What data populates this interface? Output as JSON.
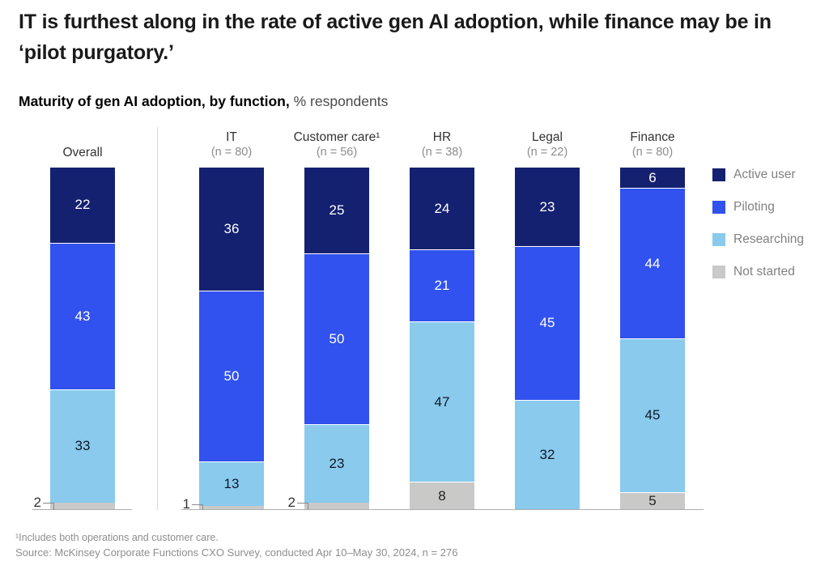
{
  "title": "IT is furthest along in the rate of active gen AI adoption, while finance may be in ‘pilot purgatory.’",
  "subtitle": {
    "bold": "Maturity of gen AI adoption, by function,",
    "regular": " % respondents"
  },
  "chart_data": {
    "type": "bar",
    "stacked": true,
    "unit": "% respondents",
    "ylim": [
      0,
      100
    ],
    "legend_position": "right",
    "categories": [
      {
        "label": "Overall",
        "n": ""
      },
      {
        "label": "IT",
        "n": "(n = 80)"
      },
      {
        "label": "Customer care¹",
        "n": "(n = 56)"
      },
      {
        "label": "HR",
        "n": "(n = 38)"
      },
      {
        "label": "Legal",
        "n": "(n = 22)"
      },
      {
        "label": "Finance",
        "n": "(n = 80)"
      }
    ],
    "series": [
      {
        "name": "Active user",
        "color": "#142170",
        "text_color": "#ffffff",
        "values": [
          22,
          36,
          25,
          24,
          23,
          6
        ]
      },
      {
        "name": "Piloting",
        "color": "#3152ee",
        "text_color": "#ffffff",
        "values": [
          43,
          50,
          50,
          21,
          45,
          44
        ]
      },
      {
        "name": "Researching",
        "color": "#89caed",
        "text_color": "#10192b",
        "values": [
          33,
          13,
          23,
          47,
          32,
          45
        ]
      },
      {
        "name": "Not started",
        "color": "#c9c9c8",
        "text_color": "#222222",
        "values": [
          2,
          1,
          2,
          8,
          null,
          5
        ]
      }
    ]
  },
  "legend": {
    "items": [
      {
        "label": "Active user",
        "color": "#142170"
      },
      {
        "label": "Piloting",
        "color": "#3152ee"
      },
      {
        "label": "Researching",
        "color": "#89caed"
      },
      {
        "label": "Not started",
        "color": "#c9c9c8"
      }
    ]
  },
  "footnote": "¹Includes both operations and customer care.",
  "source": "Source: McKinsey Corporate Functions CXO Survey, conducted Apr 10–May 30, 2024, n = 276"
}
